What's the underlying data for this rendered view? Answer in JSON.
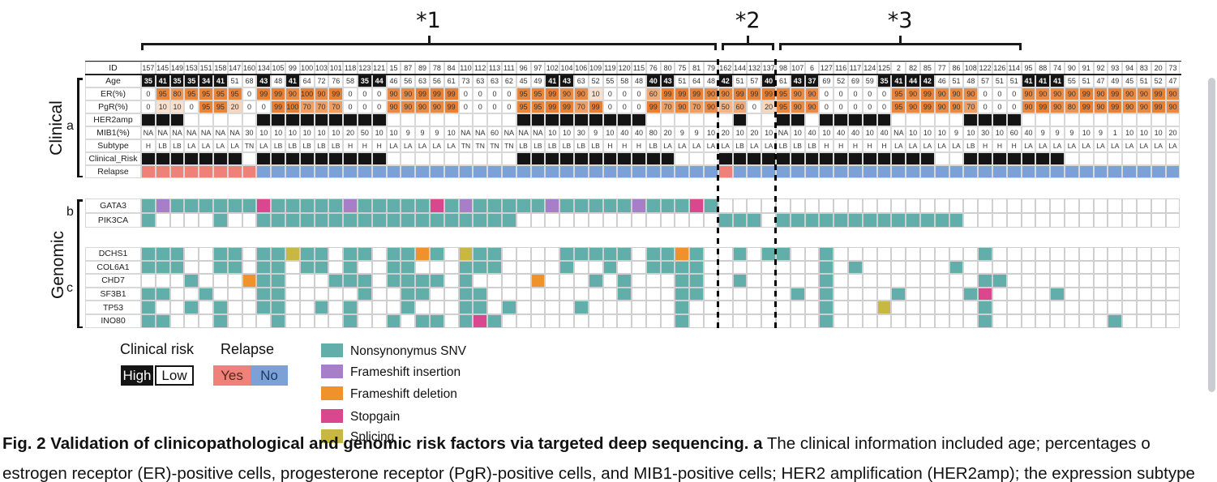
{
  "figure_caption": {
    "bold_part": "Fig. 2 Validation of clinicopathological and genomic risk factors via targeted deep sequencing. a",
    "normal_part": " The clinical information included age; percentages o",
    "clipped_line2": "estrogen receptor (ER)-positive cells, progesterone receptor (PgR)-positive cells, and MIB1-positive cells; HER2 amplification (HER2amp); the expression subtype"
  },
  "brackets": [
    {
      "label": "*1"
    },
    {
      "label": "*2"
    },
    {
      "label": "*3"
    }
  ],
  "side_labels": {
    "clinical": "Clinical",
    "genomic": "Genomic",
    "panel_a": "a",
    "panel_b": "b",
    "panel_c": "c"
  },
  "row_labels": {
    "id": "ID",
    "age": "Age",
    "er": "ER(%)",
    "pgr": "PgR(%)",
    "her2": "HER2amp",
    "mib1": "MIB1(%)",
    "subtype": "Subtype",
    "risk": "Clinical_Risk",
    "relapse": "Relapse"
  },
  "columns": [
    {
      "id": "157",
      "age": 35,
      "er": 0,
      "pgr": 0,
      "her2": true,
      "mib1": "NA",
      "subtype": "H",
      "risk": "High",
      "relapse": "Yes"
    },
    {
      "id": "145",
      "age": 41,
      "er": 95,
      "pgr": 10,
      "her2": true,
      "mib1": "NA",
      "subtype": "LB",
      "risk": "High",
      "relapse": "Yes"
    },
    {
      "id": "149",
      "age": 35,
      "er": 80,
      "pgr": 10,
      "her2": true,
      "mib1": "NA",
      "subtype": "LB",
      "risk": "High",
      "relapse": "Yes"
    },
    {
      "id": "153",
      "age": 35,
      "er": 95,
      "pgr": 0,
      "her2": false,
      "mib1": "NA",
      "subtype": "LA",
      "risk": "High",
      "relapse": "Yes"
    },
    {
      "id": "151",
      "age": 34,
      "er": 95,
      "pgr": 95,
      "her2": false,
      "mib1": "NA",
      "subtype": "LA",
      "risk": "High",
      "relapse": "Yes"
    },
    {
      "id": "158",
      "age": 41,
      "er": 95,
      "pgr": 95,
      "her2": false,
      "mib1": "NA",
      "subtype": "LA",
      "risk": "High",
      "relapse": "Yes"
    },
    {
      "id": "147",
      "age": 51,
      "er": 95,
      "pgr": 20,
      "her2": false,
      "mib1": "NA",
      "subtype": "LA",
      "risk": "High",
      "relapse": "Yes"
    },
    {
      "id": "160",
      "age": 68,
      "er": 0,
      "pgr": 0,
      "her2": false,
      "mib1": "30",
      "subtype": "TN",
      "risk": "Low",
      "relapse": "Yes"
    },
    {
      "id": "134",
      "age": 43,
      "er": 99,
      "pgr": 0,
      "her2": true,
      "mib1": "10",
      "subtype": "LA",
      "risk": "High",
      "relapse": "No"
    },
    {
      "id": "105",
      "age": 48,
      "er": 99,
      "pgr": 99,
      "her2": true,
      "mib1": "10",
      "subtype": "LB",
      "risk": "High",
      "relapse": "No"
    },
    {
      "id": "99",
      "age": 41,
      "er": 90,
      "pgr": 100,
      "her2": true,
      "mib1": "10",
      "subtype": "LB",
      "risk": "High",
      "relapse": "No"
    },
    {
      "id": "100",
      "age": 64,
      "er": 100,
      "pgr": 70,
      "her2": true,
      "mib1": "10",
      "subtype": "LB",
      "risk": "High",
      "relapse": "No"
    },
    {
      "id": "103",
      "age": 72,
      "er": 90,
      "pgr": 70,
      "her2": true,
      "mib1": "10",
      "subtype": "LB",
      "risk": "High",
      "relapse": "No"
    },
    {
      "id": "101",
      "age": 76,
      "er": 99,
      "pgr": 70,
      "her2": true,
      "mib1": "10",
      "subtype": "LB",
      "risk": "High",
      "relapse": "No"
    },
    {
      "id": "118",
      "age": 58,
      "er": 0,
      "pgr": 0,
      "her2": true,
      "mib1": "20",
      "subtype": "H",
      "risk": "High",
      "relapse": "No"
    },
    {
      "id": "123",
      "age": 35,
      "er": 0,
      "pgr": 0,
      "her2": true,
      "mib1": "50",
      "subtype": "H",
      "risk": "High",
      "relapse": "No"
    },
    {
      "id": "121",
      "age": 44,
      "er": 0,
      "pgr": 0,
      "her2": true,
      "mib1": "10",
      "subtype": "H",
      "risk": "High",
      "relapse": "No"
    },
    {
      "id": "15",
      "age": 46,
      "er": 90,
      "pgr": 90,
      "her2": false,
      "mib1": "10",
      "subtype": "LA",
      "risk": "Low",
      "relapse": "No"
    },
    {
      "id": "87",
      "age": 56,
      "er": 90,
      "pgr": 90,
      "her2": false,
      "mib1": "9",
      "subtype": "LA",
      "risk": "Low",
      "relapse": "No"
    },
    {
      "id": "89",
      "age": 63,
      "er": 99,
      "pgr": 90,
      "her2": false,
      "mib1": "9",
      "subtype": "LA",
      "risk": "Low",
      "relapse": "No"
    },
    {
      "id": "78",
      "age": 56,
      "er": 99,
      "pgr": 90,
      "her2": false,
      "mib1": "9",
      "subtype": "LA",
      "risk": "Low",
      "relapse": "No"
    },
    {
      "id": "84",
      "age": 61,
      "er": 99,
      "pgr": 99,
      "her2": false,
      "mib1": "10",
      "subtype": "LA",
      "risk": "Low",
      "relapse": "No"
    },
    {
      "id": "110",
      "age": 73,
      "er": 0,
      "pgr": 0,
      "her2": false,
      "mib1": "NA",
      "subtype": "TN",
      "risk": "Low",
      "relapse": "No"
    },
    {
      "id": "112",
      "age": 63,
      "er": 0,
      "pgr": 0,
      "her2": false,
      "mib1": "NA",
      "subtype": "TN",
      "risk": "Low",
      "relapse": "No"
    },
    {
      "id": "113",
      "age": 63,
      "er": 0,
      "pgr": 0,
      "her2": false,
      "mib1": "60",
      "subtype": "TN",
      "risk": "Low",
      "relapse": "No"
    },
    {
      "id": "111",
      "age": 62,
      "er": 0,
      "pgr": 0,
      "her2": false,
      "mib1": "NA",
      "subtype": "TN",
      "risk": "Low",
      "relapse": "No"
    },
    {
      "id": "96",
      "age": 45,
      "er": 95,
      "pgr": 95,
      "her2": true,
      "mib1": "NA",
      "subtype": "LB",
      "risk": "High",
      "relapse": "No"
    },
    {
      "id": "97",
      "age": 49,
      "er": 95,
      "pgr": 95,
      "her2": true,
      "mib1": "NA",
      "subtype": "LB",
      "risk": "High",
      "relapse": "No"
    },
    {
      "id": "102",
      "age": 41,
      "er": 99,
      "pgr": 99,
      "her2": true,
      "mib1": "10",
      "subtype": "LB",
      "risk": "High",
      "relapse": "No"
    },
    {
      "id": "104",
      "age": 43,
      "er": 90,
      "pgr": 99,
      "her2": true,
      "mib1": "10",
      "subtype": "LB",
      "risk": "High",
      "relapse": "No"
    },
    {
      "id": "106",
      "age": 63,
      "er": 90,
      "pgr": 70,
      "her2": true,
      "mib1": "30",
      "subtype": "LB",
      "risk": "High",
      "relapse": "No"
    },
    {
      "id": "109",
      "age": 52,
      "er": 10,
      "pgr": 99,
      "her2": true,
      "mib1": "9",
      "subtype": "LB",
      "risk": "High",
      "relapse": "No"
    },
    {
      "id": "119",
      "age": 55,
      "er": 0,
      "pgr": 0,
      "her2": true,
      "mib1": "10",
      "subtype": "H",
      "risk": "High",
      "relapse": "No"
    },
    {
      "id": "120",
      "age": 58,
      "er": 0,
      "pgr": 0,
      "her2": true,
      "mib1": "40",
      "subtype": "H",
      "risk": "High",
      "relapse": "No"
    },
    {
      "id": "115",
      "age": 48,
      "er": 0,
      "pgr": 0,
      "her2": true,
      "mib1": "40",
      "subtype": "H",
      "risk": "High",
      "relapse": "No"
    },
    {
      "id": "76",
      "age": 40,
      "er": 60,
      "pgr": 99,
      "her2": false,
      "mib1": "80",
      "subtype": "LB",
      "risk": "High",
      "relapse": "No"
    },
    {
      "id": "80",
      "age": 43,
      "er": 99,
      "pgr": 70,
      "her2": false,
      "mib1": "20",
      "subtype": "LA",
      "risk": "High",
      "relapse": "No"
    },
    {
      "id": "75",
      "age": 51,
      "er": 99,
      "pgr": 90,
      "her2": false,
      "mib1": "9",
      "subtype": "LA",
      "risk": "Low",
      "relapse": "No"
    },
    {
      "id": "81",
      "age": 64,
      "er": 99,
      "pgr": 70,
      "her2": false,
      "mib1": "9",
      "subtype": "LA",
      "risk": "Low",
      "relapse": "No"
    },
    {
      "id": "79",
      "age": 48,
      "er": 90,
      "pgr": 90,
      "her2": false,
      "mib1": "10",
      "subtype": "LA",
      "risk": "Low",
      "relapse": "No"
    },
    {
      "id": "162",
      "age": 42,
      "er": 90,
      "pgr": 50,
      "her2": false,
      "mib1": "20",
      "subtype": "LA",
      "risk": "High",
      "relapse": "Yes"
    },
    {
      "id": "144",
      "age": 51,
      "er": 99,
      "pgr": 60,
      "her2": true,
      "mib1": "10",
      "subtype": "LB",
      "risk": "High",
      "relapse": "No"
    },
    {
      "id": "132",
      "age": 57,
      "er": 99,
      "pgr": 0,
      "her2": false,
      "mib1": "20",
      "subtype": "LA",
      "risk": "High",
      "relapse": "No"
    },
    {
      "id": "137",
      "age": 40,
      "er": 99,
      "pgr": 20,
      "her2": false,
      "mib1": "10",
      "subtype": "LA",
      "risk": "High",
      "relapse": "No"
    },
    {
      "id": "98",
      "age": 61,
      "er": 95,
      "pgr": 95,
      "her2": true,
      "mib1": "NA",
      "subtype": "LB",
      "risk": "High",
      "relapse": "No"
    },
    {
      "id": "107",
      "age": 43,
      "er": 90,
      "pgr": 90,
      "her2": true,
      "mib1": "10",
      "subtype": "LB",
      "risk": "High",
      "relapse": "No"
    },
    {
      "id": "6",
      "age": 37,
      "er": 90,
      "pgr": 90,
      "her2": false,
      "mib1": "40",
      "subtype": "LB",
      "risk": "High",
      "relapse": "No"
    },
    {
      "id": "127",
      "age": 69,
      "er": 0,
      "pgr": 0,
      "her2": true,
      "mib1": "10",
      "subtype": "H",
      "risk": "High",
      "relapse": "No"
    },
    {
      "id": "116",
      "age": 52,
      "er": 0,
      "pgr": 0,
      "her2": true,
      "mib1": "40",
      "subtype": "H",
      "risk": "High",
      "relapse": "No"
    },
    {
      "id": "117",
      "age": 69,
      "er": 0,
      "pgr": 0,
      "her2": true,
      "mib1": "40",
      "subtype": "H",
      "risk": "High",
      "relapse": "No"
    },
    {
      "id": "124",
      "age": 59,
      "er": 0,
      "pgr": 0,
      "her2": true,
      "mib1": "10",
      "subtype": "H",
      "risk": "High",
      "relapse": "No"
    },
    {
      "id": "125",
      "age": 35,
      "er": 0,
      "pgr": 0,
      "her2": true,
      "mib1": "40",
      "subtype": "H",
      "risk": "High",
      "relapse": "No"
    },
    {
      "id": "2",
      "age": 41,
      "er": 95,
      "pgr": 95,
      "her2": false,
      "mib1": "NA",
      "subtype": "LA",
      "risk": "High",
      "relapse": "No"
    },
    {
      "id": "82",
      "age": 44,
      "er": 90,
      "pgr": 90,
      "her2": false,
      "mib1": "10",
      "subtype": "LA",
      "risk": "High",
      "relapse": "No"
    },
    {
      "id": "85",
      "age": 42,
      "er": 99,
      "pgr": 99,
      "her2": false,
      "mib1": "10",
      "subtype": "LA",
      "risk": "High",
      "relapse": "No"
    },
    {
      "id": "77",
      "age": 46,
      "er": 90,
      "pgr": 90,
      "her2": false,
      "mib1": "10",
      "subtype": "LA",
      "risk": "Low",
      "relapse": "No"
    },
    {
      "id": "86",
      "age": 51,
      "er": 90,
      "pgr": 90,
      "her2": false,
      "mib1": "9",
      "subtype": "LA",
      "risk": "Low",
      "relapse": "No"
    },
    {
      "id": "108",
      "age": 48,
      "er": 90,
      "pgr": 70,
      "her2": true,
      "mib1": "10",
      "subtype": "LB",
      "risk": "High",
      "relapse": "No"
    },
    {
      "id": "122",
      "age": 57,
      "er": 0,
      "pgr": 0,
      "her2": true,
      "mib1": "30",
      "subtype": "H",
      "risk": "High",
      "relapse": "No"
    },
    {
      "id": "126",
      "age": 51,
      "er": 0,
      "pgr": 0,
      "her2": true,
      "mib1": "10",
      "subtype": "H",
      "risk": "High",
      "relapse": "No"
    },
    {
      "id": "114",
      "age": 51,
      "er": 0,
      "pgr": 0,
      "her2": true,
      "mib1": "60",
      "subtype": "H",
      "risk": "High",
      "relapse": "No"
    },
    {
      "id": "95",
      "age": 41,
      "er": 90,
      "pgr": 90,
      "her2": false,
      "mib1": "40",
      "subtype": "LA",
      "risk": "High",
      "relapse": "No"
    },
    {
      "id": "88",
      "age": 41,
      "er": 90,
      "pgr": 99,
      "her2": false,
      "mib1": "9",
      "subtype": "LA",
      "risk": "High",
      "relapse": "No"
    },
    {
      "id": "74",
      "age": 41,
      "er": 90,
      "pgr": 90,
      "her2": false,
      "mib1": "9",
      "subtype": "LA",
      "risk": "High",
      "relapse": "No"
    },
    {
      "id": "90",
      "age": 55,
      "er": 90,
      "pgr": 80,
      "her2": false,
      "mib1": "9",
      "subtype": "LA",
      "risk": "Low",
      "relapse": "No"
    },
    {
      "id": "91",
      "age": 51,
      "er": 99,
      "pgr": 99,
      "her2": false,
      "mib1": "10",
      "subtype": "LA",
      "risk": "Low",
      "relapse": "No"
    },
    {
      "id": "92",
      "age": 47,
      "er": 90,
      "pgr": 90,
      "her2": false,
      "mib1": "9",
      "subtype": "LA",
      "risk": "Low",
      "relapse": "No"
    },
    {
      "id": "93",
      "age": 49,
      "er": 99,
      "pgr": 99,
      "her2": false,
      "mib1": "1",
      "subtype": "LA",
      "risk": "Low",
      "relapse": "No"
    },
    {
      "id": "94",
      "age": 45,
      "er": 90,
      "pgr": 90,
      "her2": false,
      "mib1": "10",
      "subtype": "LA",
      "risk": "Low",
      "relapse": "No"
    },
    {
      "id": "83",
      "age": 51,
      "er": 90,
      "pgr": 90,
      "her2": false,
      "mib1": "10",
      "subtype": "LA",
      "risk": "Low",
      "relapse": "No"
    },
    {
      "id": "20",
      "age": 52,
      "er": 99,
      "pgr": 99,
      "her2": false,
      "mib1": "10",
      "subtype": "LA",
      "risk": "Low",
      "relapse": "No"
    },
    {
      "id": "73",
      "age": 47,
      "er": 90,
      "pgr": 90,
      "her2": false,
      "mib1": "20",
      "subtype": "LA",
      "risk": "Low",
      "relapse": "No"
    }
  ],
  "genes_b": [
    {
      "name": "GATA3",
      "mutations": {
        "snv": [
          1,
          3,
          4,
          5,
          6,
          7,
          8,
          10,
          11,
          12,
          13,
          14,
          16,
          17,
          18,
          19,
          20,
          22,
          24,
          25,
          26,
          27,
          28,
          30,
          31,
          32,
          33,
          34,
          36,
          37,
          38,
          40
        ],
        "ins": [
          2,
          15,
          23,
          29,
          35
        ],
        "del": [],
        "stop": [
          9,
          21,
          39
        ],
        "spl": []
      }
    },
    {
      "name": "PIK3CA",
      "mutations": {
        "snv": [
          1,
          6,
          9,
          10,
          11,
          12,
          13,
          14,
          15,
          16,
          17,
          18,
          19,
          20,
          21,
          22,
          23,
          24,
          25,
          26,
          41,
          42,
          43,
          45,
          46,
          47,
          48,
          49,
          50,
          51,
          52,
          53,
          54,
          55,
          56,
          57
        ],
        "ins": [],
        "del": [],
        "stop": [],
        "spl": []
      }
    }
  ],
  "genes_c": [
    {
      "name": "DCHS1",
      "mutations": {
        "snv": [
          1,
          2,
          3,
          6,
          7,
          9,
          10,
          12,
          13,
          15,
          16,
          18,
          19,
          21,
          24,
          25,
          30,
          31,
          32,
          33,
          34,
          36,
          37,
          39,
          42,
          44,
          45,
          48,
          59
        ],
        "ins": [],
        "del": [
          20,
          38
        ],
        "stop": [],
        "spl": [
          11,
          23
        ]
      }
    },
    {
      "name": "COL6A1",
      "mutations": {
        "snv": [
          1,
          2,
          3,
          6,
          7,
          9,
          10,
          12,
          13,
          15,
          18,
          19,
          23,
          24,
          25,
          30,
          33,
          36,
          37,
          38,
          39,
          48,
          50,
          57
        ],
        "ins": [],
        "del": [],
        "stop": [],
        "spl": []
      }
    },
    {
      "name": "CHD7",
      "mutations": {
        "snv": [
          4,
          9,
          10,
          14,
          15,
          16,
          18,
          19,
          20,
          21,
          23,
          32,
          34,
          38,
          39,
          42,
          48,
          59,
          60
        ],
        "ins": [],
        "del": [
          8,
          28
        ],
        "stop": [],
        "spl": []
      }
    },
    {
      "name": "SF3B1",
      "mutations": {
        "snv": [
          1,
          2,
          5,
          9,
          10,
          16,
          19,
          20,
          23,
          24,
          34,
          38,
          39,
          46,
          48,
          53,
          58,
          64
        ],
        "ins": [],
        "del": [],
        "stop": [
          59
        ],
        "spl": []
      }
    },
    {
      "name": "TP53",
      "mutations": {
        "snv": [
          1,
          4,
          6,
          9,
          10,
          13,
          15,
          19,
          23,
          24,
          26,
          31,
          38,
          48,
          59
        ],
        "ins": [],
        "del": [],
        "stop": [],
        "spl": [
          52
        ]
      }
    },
    {
      "name": "INO80",
      "mutations": {
        "snv": [
          1,
          2,
          6,
          10,
          15,
          18,
          20,
          21,
          23,
          25,
          38,
          48,
          59,
          68
        ],
        "ins": [],
        "del": [],
        "stop": [
          24
        ],
        "spl": []
      }
    }
  ],
  "legend": {
    "clinical_risk_title": "Clinical risk",
    "clinical_risk_items": [
      {
        "label": "High"
      },
      {
        "label": "Low"
      }
    ],
    "relapse_title": "Relapse",
    "relapse_items": [
      {
        "label": "Yes"
      },
      {
        "label": "No"
      }
    ],
    "mutation_items": [
      {
        "key": "snv",
        "label": "Nonsynonymus SNV"
      },
      {
        "key": "ins",
        "label": "Frameshift insertion"
      },
      {
        "key": "del",
        "label": "Frameshift deletion"
      },
      {
        "key": "stop",
        "label": "Stopgain"
      },
      {
        "key": "spl",
        "label": "Splicing"
      }
    ]
  },
  "colors": {
    "black_fill": "#141414",
    "er_pgr_base": "232,126,48",
    "relapse_yes": "#ee8178",
    "relapse_no": "#7ca1d7",
    "mutation": {
      "snv": "#62aeaa",
      "ins": "#a77fc9",
      "del": "#f0922b",
      "stop": "#d9478f",
      "spl": "#c8b740"
    }
  },
  "groups": {
    "bracket1_cols": [
      1,
      40
    ],
    "bracket2_cols": [
      41,
      44
    ],
    "bracket3_cols": [
      45,
      61
    ]
  }
}
